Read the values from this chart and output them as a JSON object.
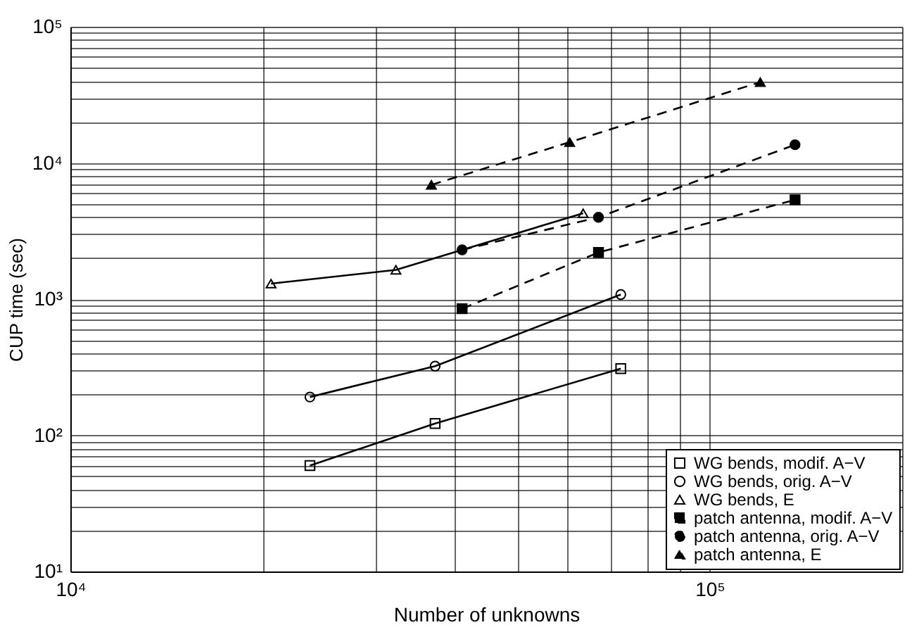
{
  "chart_data": {
    "type": "line",
    "xlabel": "Number of unknowns",
    "ylabel": "CUP time (sec)",
    "log": "xy",
    "grid": true,
    "legend": "bottom right",
    "xlim": [
      10000,
      200000
    ],
    "xticks": [
      {
        "value": 10000,
        "label": "10⁴"
      },
      {
        "value": 20000,
        "label": null
      },
      {
        "value": 30000,
        "label": null
      },
      {
        "value": 40000,
        "label": null
      },
      {
        "value": 50000,
        "label": null
      },
      {
        "value": 60000,
        "label": null
      },
      {
        "value": 70000,
        "label": null
      },
      {
        "value": 80000,
        "label": null
      },
      {
        "value": 90000,
        "label": null
      },
      {
        "value": 100000,
        "label": "10⁵"
      },
      {
        "value": 200000,
        "label": null
      }
    ],
    "ylim": [
      10,
      100000
    ],
    "yticks": [
      {
        "value": 10,
        "label": "10¹"
      },
      {
        "value": 20,
        "label": null
      },
      {
        "value": 30,
        "label": null
      },
      {
        "value": 40,
        "label": null
      },
      {
        "value": 50,
        "label": null
      },
      {
        "value": 60,
        "label": null
      },
      {
        "value": 70,
        "label": null
      },
      {
        "value": 80,
        "label": null
      },
      {
        "value": 90,
        "label": null
      },
      {
        "value": 100,
        "label": "10²"
      },
      {
        "value": 200,
        "label": null
      },
      {
        "value": 300,
        "label": null
      },
      {
        "value": 400,
        "label": null
      },
      {
        "value": 500,
        "label": null
      },
      {
        "value": 600,
        "label": null
      },
      {
        "value": 700,
        "label": null
      },
      {
        "value": 800,
        "label": null
      },
      {
        "value": 900,
        "label": null
      },
      {
        "value": 1000,
        "label": "10³"
      },
      {
        "value": 2000,
        "label": null
      },
      {
        "value": 3000,
        "label": null
      },
      {
        "value": 4000,
        "label": null
      },
      {
        "value": 5000,
        "label": null
      },
      {
        "value": 6000,
        "label": null
      },
      {
        "value": 7000,
        "label": null
      },
      {
        "value": 8000,
        "label": null
      },
      {
        "value": 9000,
        "label": null
      },
      {
        "value": 10000,
        "label": "10⁴"
      },
      {
        "value": 20000,
        "label": null
      },
      {
        "value": 30000,
        "label": null
      },
      {
        "value": 40000,
        "label": null
      },
      {
        "value": 50000,
        "label": null
      },
      {
        "value": 60000,
        "label": null
      },
      {
        "value": 70000,
        "label": null
      },
      {
        "value": 80000,
        "label": null
      },
      {
        "value": 90000,
        "label": null
      },
      {
        "value": 100000,
        "label": "10⁵"
      }
    ],
    "series": [
      {
        "name": "WG bends, modif. A−V",
        "color": "#000000",
        "marker": "square",
        "line_style": "solid",
        "x": [
          23700,
          37200,
          72600
        ],
        "values": [
          60,
          122,
          309
        ]
      },
      {
        "name": "WG bends, orig. A−V",
        "color": "#000000",
        "marker": "circle",
        "line_style": "solid",
        "x": [
          23700,
          37200,
          72600
        ],
        "values": [
          191,
          322,
          1080
        ]
      },
      {
        "name": "WG bends, E",
        "color": "#000000",
        "marker": "triangle",
        "line_style": "solid",
        "x": [
          20600,
          32300,
          63400
        ],
        "values": [
          1300,
          1640,
          4270
        ]
      },
      {
        "name": "patch antenna, modif. A−V",
        "color": "#000000",
        "marker": "square",
        "line_style": "dashed",
        "x": [
          41000,
          67000,
          136000
        ],
        "values": [
          850,
          2200,
          5360
        ]
      },
      {
        "name": "patch antenna, orig. A−V",
        "color": "#000000",
        "marker": "circle",
        "line_style": "dashed",
        "x": [
          41000,
          67000,
          136000
        ],
        "values": [
          2300,
          3990,
          13600
        ]
      },
      {
        "name": "patch antenna, E",
        "color": "#000000",
        "marker": "triangle",
        "line_style": "dashed",
        "x": [
          36700,
          60400,
          120000
        ],
        "values": [
          6900,
          14200,
          39200
        ]
      }
    ]
  }
}
